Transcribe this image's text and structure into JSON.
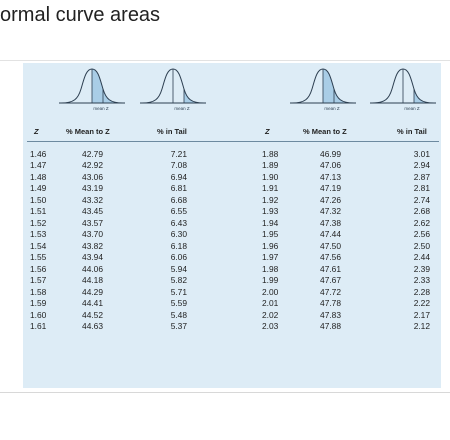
{
  "page": {
    "title": "ormal curve areas"
  },
  "curves": {
    "label_mean_z": "mean Z"
  },
  "table": {
    "headers": {
      "z": "Z",
      "mean_to_z": "% Mean to Z",
      "in_tail": "% in Tail"
    },
    "left": {
      "z": [
        "1.46",
        "1.47",
        "1.48",
        "1.49",
        "1.50",
        "1.51",
        "1.52",
        "1.53",
        "1.54",
        "1.55",
        "1.56",
        "1.57",
        "1.58",
        "1.59",
        "1.60",
        "1.61"
      ],
      "mean_to_z": [
        "42.79",
        "42.92",
        "43.06",
        "43.19",
        "43.32",
        "43.45",
        "43.57",
        "43.70",
        "43.82",
        "43.94",
        "44.06",
        "44.18",
        "44.29",
        "44.41",
        "44.52",
        "44.63"
      ],
      "in_tail": [
        "7.21",
        "7.08",
        "6.94",
        "6.81",
        "6.68",
        "6.55",
        "6.43",
        "6.30",
        "6.18",
        "6.06",
        "5.94",
        "5.82",
        "5.71",
        "5.59",
        "5.48",
        "5.37"
      ]
    },
    "right": {
      "z": [
        "1.88",
        "1.89",
        "1.90",
        "1.91",
        "1.92",
        "1.93",
        "1.94",
        "1.95",
        "1.96",
        "1.97",
        "1.98",
        "1.99",
        "2.00",
        "2.01",
        "2.02",
        "2.03"
      ],
      "mean_to_z": [
        "46.99",
        "47.06",
        "47.13",
        "47.19",
        "47.26",
        "47.32",
        "47.38",
        "47.44",
        "47.50",
        "47.56",
        "47.61",
        "47.67",
        "47.72",
        "47.78",
        "47.83",
        "47.88"
      ],
      "in_tail": [
        "3.01",
        "2.94",
        "2.87",
        "2.81",
        "2.74",
        "2.68",
        "2.62",
        "2.56",
        "2.50",
        "2.44",
        "2.39",
        "2.33",
        "2.28",
        "2.22",
        "2.17",
        "2.12"
      ]
    }
  },
  "colors": {
    "table_bg": "#ddecf6",
    "shade": "#a9cde6",
    "curve_line": "#2c3e50"
  }
}
